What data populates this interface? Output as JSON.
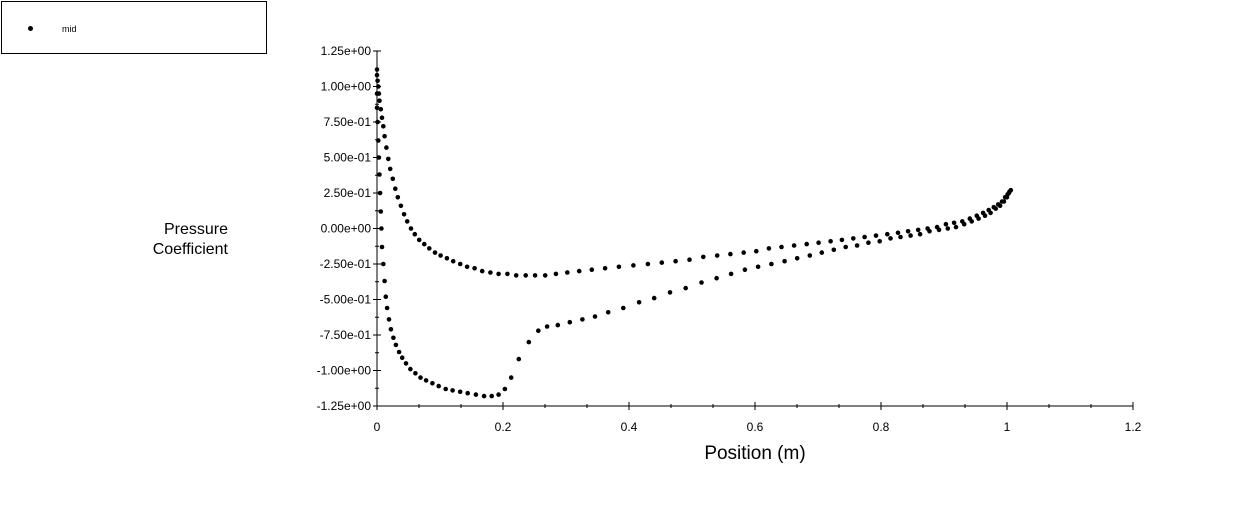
{
  "legend": {
    "series_label": "mid"
  },
  "chart_data": {
    "type": "scatter",
    "xlabel": "Position (m)",
    "ylabel": [
      "Pressure",
      "Coefficient"
    ],
    "xlim": [
      0,
      1.2
    ],
    "ylim": [
      -1.25,
      1.25
    ],
    "xticks": [
      "0",
      "0.2",
      "0.4",
      "0.6",
      "0.8",
      "1",
      "1.2"
    ],
    "xtick_values": [
      0,
      0.2,
      0.4,
      0.6,
      0.8,
      1.0,
      1.2
    ],
    "yticks": [
      "1.25e+00",
      "1.00e+00",
      "7.50e-01",
      "5.00e-01",
      "2.50e-01",
      "0.00e+00",
      "-2.50e-01",
      "-5.00e-01",
      "-7.50e-01",
      "-1.00e+00",
      "-1.25e+00"
    ],
    "ytick_values": [
      1.25,
      1.0,
      0.75,
      0.5,
      0.25,
      0.0,
      -0.25,
      -0.5,
      -0.75,
      -1.0,
      -1.25
    ],
    "grid": false,
    "legend_position": "top-left",
    "marker_color": "#000000",
    "series": [
      {
        "name": "mid",
        "points": [
          [
            0.0,
            1.12
          ],
          [
            0.0,
            1.08
          ],
          [
            0.001,
            1.04
          ],
          [
            0.002,
            1.0
          ],
          [
            0.003,
            0.95
          ],
          [
            0.004,
            0.9
          ],
          [
            0.006,
            0.84
          ],
          [
            0.008,
            0.78
          ],
          [
            0.01,
            0.72
          ],
          [
            0.012,
            0.65
          ],
          [
            0.015,
            0.57
          ],
          [
            0.018,
            0.49
          ],
          [
            0.021,
            0.42
          ],
          [
            0.025,
            0.35
          ],
          [
            0.029,
            0.28
          ],
          [
            0.033,
            0.22
          ],
          [
            0.038,
            0.16
          ],
          [
            0.043,
            0.1
          ],
          [
            0.048,
            0.05
          ],
          [
            0.054,
            0.0
          ],
          [
            0.06,
            -0.04
          ],
          [
            0.067,
            -0.08
          ],
          [
            0.075,
            -0.11
          ],
          [
            0.083,
            -0.14
          ],
          [
            0.092,
            -0.17
          ],
          [
            0.101,
            -0.19
          ],
          [
            0.111,
            -0.21
          ],
          [
            0.121,
            -0.23
          ],
          [
            0.132,
            -0.25
          ],
          [
            0.143,
            -0.27
          ],
          [
            0.155,
            -0.28
          ],
          [
            0.167,
            -0.3
          ],
          [
            0.18,
            -0.31
          ],
          [
            0.193,
            -0.32
          ],
          [
            0.207,
            -0.32
          ],
          [
            0.221,
            -0.33
          ],
          [
            0.236,
            -0.33
          ],
          [
            0.251,
            -0.33
          ],
          [
            0.267,
            -0.33
          ],
          [
            0.284,
            -0.32
          ],
          [
            0.302,
            -0.31
          ],
          [
            0.321,
            -0.3
          ],
          [
            0.341,
            -0.29
          ],
          [
            0.362,
            -0.28
          ],
          [
            0.384,
            -0.27
          ],
          [
            0.407,
            -0.26
          ],
          [
            0.43,
            -0.25
          ],
          [
            0.452,
            -0.24
          ],
          [
            0.474,
            -0.23
          ],
          [
            0.496,
            -0.22
          ],
          [
            0.518,
            -0.2
          ],
          [
            0.54,
            -0.19
          ],
          [
            0.561,
            -0.18
          ],
          [
            0.582,
            -0.17
          ],
          [
            0.602,
            -0.16
          ],
          [
            0.622,
            -0.14
          ],
          [
            0.642,
            -0.13
          ],
          [
            0.662,
            -0.12
          ],
          [
            0.682,
            -0.11
          ],
          [
            0.701,
            -0.1
          ],
          [
            0.72,
            -0.09
          ],
          [
            0.738,
            -0.08
          ],
          [
            0.756,
            -0.07
          ],
          [
            0.774,
            -0.06
          ],
          [
            0.792,
            -0.05
          ],
          [
            0.81,
            -0.04
          ],
          [
            0.827,
            -0.03
          ],
          [
            0.843,
            -0.02
          ],
          [
            0.859,
            -0.01
          ],
          [
            0.874,
            0.0
          ],
          [
            0.889,
            0.01
          ],
          [
            0.903,
            0.03
          ],
          [
            0.916,
            0.04
          ],
          [
            0.929,
            0.05
          ],
          [
            0.941,
            0.07
          ],
          [
            0.952,
            0.09
          ],
          [
            0.962,
            0.11
          ],
          [
            0.971,
            0.13
          ],
          [
            0.979,
            0.15
          ],
          [
            0.986,
            0.17
          ],
          [
            0.992,
            0.19
          ],
          [
            0.997,
            0.22
          ],
          [
            1.001,
            0.24
          ],
          [
            1.004,
            0.26
          ],
          [
            1.006,
            0.27
          ],
          [
            0.0,
            0.95
          ],
          [
            0.0,
            0.85
          ],
          [
            0.001,
            0.75
          ],
          [
            0.002,
            0.62
          ],
          [
            0.003,
            0.5
          ],
          [
            0.004,
            0.38
          ],
          [
            0.005,
            0.25
          ],
          [
            0.006,
            0.12
          ],
          [
            0.007,
            0.0
          ],
          [
            0.008,
            -0.13
          ],
          [
            0.01,
            -0.25
          ],
          [
            0.012,
            -0.37
          ],
          [
            0.014,
            -0.48
          ],
          [
            0.016,
            -0.56
          ],
          [
            0.019,
            -0.64
          ],
          [
            0.022,
            -0.71
          ],
          [
            0.026,
            -0.77
          ],
          [
            0.03,
            -0.82
          ],
          [
            0.035,
            -0.87
          ],
          [
            0.04,
            -0.91
          ],
          [
            0.046,
            -0.95
          ],
          [
            0.053,
            -0.99
          ],
          [
            0.061,
            -1.02
          ],
          [
            0.069,
            -1.05
          ],
          [
            0.078,
            -1.07
          ],
          [
            0.088,
            -1.09
          ],
          [
            0.098,
            -1.11
          ],
          [
            0.109,
            -1.13
          ],
          [
            0.12,
            -1.14
          ],
          [
            0.132,
            -1.15
          ],
          [
            0.144,
            -1.16
          ],
          [
            0.157,
            -1.17
          ],
          [
            0.17,
            -1.18
          ],
          [
            0.182,
            -1.18
          ],
          [
            0.193,
            -1.17
          ],
          [
            0.203,
            -1.13
          ],
          [
            0.213,
            -1.05
          ],
          [
            0.225,
            -0.92
          ],
          [
            0.241,
            -0.8
          ],
          [
            0.256,
            -0.72
          ],
          [
            0.27,
            -0.69
          ],
          [
            0.287,
            -0.68
          ],
          [
            0.306,
            -0.66
          ],
          [
            0.326,
            -0.64
          ],
          [
            0.346,
            -0.62
          ],
          [
            0.367,
            -0.59
          ],
          [
            0.391,
            -0.56
          ],
          [
            0.416,
            -0.52
          ],
          [
            0.44,
            -0.49
          ],
          [
            0.465,
            -0.45
          ],
          [
            0.49,
            -0.42
          ],
          [
            0.515,
            -0.38
          ],
          [
            0.539,
            -0.35
          ],
          [
            0.562,
            -0.32
          ],
          [
            0.584,
            -0.29
          ],
          [
            0.605,
            -0.27
          ],
          [
            0.626,
            -0.25
          ],
          [
            0.647,
            -0.23
          ],
          [
            0.667,
            -0.21
          ],
          [
            0.687,
            -0.19
          ],
          [
            0.706,
            -0.17
          ],
          [
            0.725,
            -0.15
          ],
          [
            0.744,
            -0.13
          ],
          [
            0.762,
            -0.12
          ],
          [
            0.78,
            -0.1
          ],
          [
            0.798,
            -0.09
          ],
          [
            0.815,
            -0.07
          ],
          [
            0.831,
            -0.06
          ],
          [
            0.847,
            -0.05
          ],
          [
            0.862,
            -0.04
          ],
          [
            0.877,
            -0.02
          ],
          [
            0.892,
            -0.01
          ],
          [
            0.906,
            0.0
          ],
          [
            0.919,
            0.01
          ],
          [
            0.932,
            0.03
          ],
          [
            0.944,
            0.05
          ],
          [
            0.955,
            0.07
          ],
          [
            0.965,
            0.09
          ],
          [
            0.974,
            0.11
          ],
          [
            0.982,
            0.14
          ],
          [
            0.989,
            0.16
          ],
          [
            0.995,
            0.19
          ],
          [
            1.0,
            0.22
          ],
          [
            1.003,
            0.25
          ]
        ]
      }
    ]
  }
}
